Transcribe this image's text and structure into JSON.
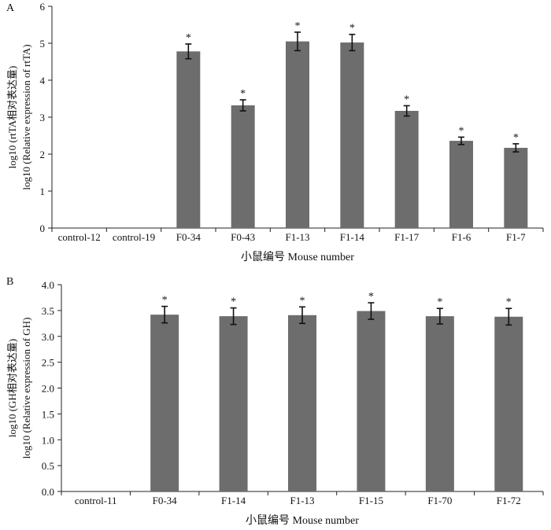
{
  "chart_data": [
    {
      "type": "bar",
      "panel": "A",
      "categories": [
        "control-12",
        "control-19",
        "F0-34",
        "F0-43",
        "F1-13",
        "F1-14",
        "F1-17",
        "F1-6",
        "F1-7"
      ],
      "values": [
        0,
        0,
        4.78,
        3.32,
        5.05,
        5.02,
        3.17,
        2.36,
        2.17
      ],
      "errors": [
        0,
        0,
        0.2,
        0.15,
        0.25,
        0.22,
        0.14,
        0.1,
        0.11
      ],
      "significance": [
        "",
        "",
        "*",
        "*",
        "*",
        "*",
        "*",
        "*",
        "*"
      ],
      "ylim": [
        0,
        6
      ],
      "yticks": [
        "0",
        "1",
        "2",
        "3",
        "4",
        "5",
        "6"
      ],
      "ylabel_line1": "log10 (rtTA相对表达量)",
      "ylabel_line2": "log10 (Relative expression of rtTA)",
      "xlabel": "小鼠编号  Mouse number",
      "bar_color": "#6d6d6d"
    },
    {
      "type": "bar",
      "panel": "B",
      "categories": [
        "control-11",
        "F0-34",
        "F1-14",
        "F1-13",
        "F1-15",
        "F1-70",
        "F1-72"
      ],
      "values": [
        0,
        3.42,
        3.39,
        3.41,
        3.49,
        3.39,
        3.38
      ],
      "errors": [
        0,
        0.16,
        0.16,
        0.16,
        0.16,
        0.15,
        0.16
      ],
      "significance": [
        "",
        "*",
        "*",
        "*",
        "*",
        "*",
        "*"
      ],
      "ylim": [
        0,
        4.0
      ],
      "yticks": [
        "0.0",
        "0.5",
        "1.0",
        "1.5",
        "2.0",
        "2.5",
        "3.0",
        "3.5",
        "4.0"
      ],
      "ylabel_line1": "log10 (GH相对表达量)",
      "ylabel_line2": "log10 (Relative expression of GH)",
      "xlabel": "小鼠编号  Mouse number",
      "bar_color": "#6d6d6d"
    }
  ]
}
